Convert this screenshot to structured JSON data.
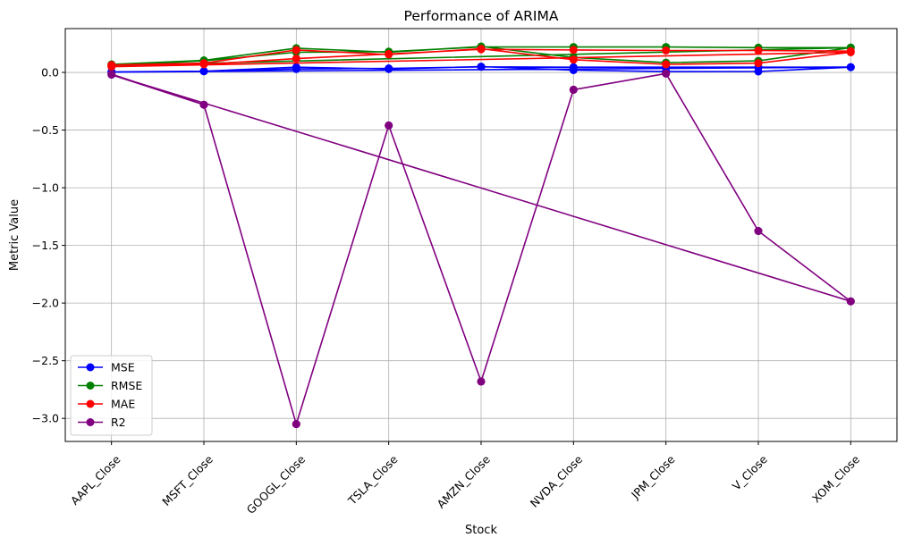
{
  "chart_data": {
    "type": "line",
    "title": "Performance of ARIMA",
    "xlabel": "Stock",
    "ylabel": "Metric Value",
    "categories": [
      "AAPL_Close",
      "MSFT_Close",
      "GOOGL_Close",
      "TSLA_Close",
      "AMZN_Close",
      "NVDA_Close",
      "JPM_Close",
      "V_Close",
      "XOM_Close"
    ],
    "ylim": [
      -3.2,
      0.38
    ],
    "yticks": [
      0.0,
      -0.5,
      -1.0,
      -1.5,
      -2.0,
      -2.5,
      -3.0
    ],
    "ytick_labels": [
      "0.0",
      "−0.5",
      "−1.0",
      "−1.5",
      "−2.0",
      "−2.5",
      "−3.0"
    ],
    "grid": true,
    "legend_position": "lower-left",
    "series": [
      {
        "name": "MSE",
        "color": "#0000ff",
        "points": [
          [
            0,
            0.005
          ],
          [
            1,
            0.01
          ],
          [
            2,
            0.045
          ],
          [
            3,
            0.03
          ],
          [
            4,
            0.05
          ],
          [
            5,
            0.02
          ],
          [
            6,
            0.007
          ],
          [
            7,
            0.008
          ],
          [
            8,
            0.045
          ],
          [
            0,
            0.003
          ],
          [
            1,
            0.01
          ],
          [
            2,
            0.03
          ],
          [
            3,
            0.035
          ],
          [
            4,
            0.048
          ],
          [
            5,
            0.045
          ],
          [
            6,
            0.045
          ],
          [
            7,
            0.045
          ],
          [
            8,
            0.046
          ]
        ]
      },
      {
        "name": "RMSE",
        "color": "#008000",
        "points": [
          [
            0,
            0.07
          ],
          [
            1,
            0.105
          ],
          [
            2,
            0.21
          ],
          [
            3,
            0.175
          ],
          [
            4,
            0.225
          ],
          [
            5,
            0.13
          ],
          [
            6,
            0.085
          ],
          [
            7,
            0.1
          ],
          [
            8,
            0.215
          ],
          [
            0,
            0.06
          ],
          [
            1,
            0.1
          ],
          [
            2,
            0.175
          ],
          [
            3,
            0.18
          ],
          [
            4,
            0.22
          ],
          [
            5,
            0.22
          ],
          [
            6,
            0.22
          ],
          [
            7,
            0.215
          ],
          [
            8,
            0.215
          ]
        ]
      },
      {
        "name": "MAE",
        "color": "#ff0000",
        "points": [
          [
            0,
            0.065
          ],
          [
            1,
            0.08
          ],
          [
            2,
            0.195
          ],
          [
            3,
            0.155
          ],
          [
            4,
            0.205
          ],
          [
            5,
            0.11
          ],
          [
            6,
            0.07
          ],
          [
            7,
            0.08
          ],
          [
            8,
            0.175
          ],
          [
            0,
            0.05
          ],
          [
            1,
            0.07
          ],
          [
            2,
            0.12
          ],
          [
            3,
            0.16
          ],
          [
            4,
            0.2
          ],
          [
            5,
            0.195
          ],
          [
            6,
            0.19
          ],
          [
            7,
            0.19
          ],
          [
            8,
            0.185
          ]
        ]
      },
      {
        "name": "R2",
        "color": "#800080",
        "points": [
          [
            0,
            -0.015
          ],
          [
            1,
            -0.28
          ],
          [
            2,
            -3.05
          ],
          [
            3,
            -0.46
          ],
          [
            4,
            -2.68
          ],
          [
            5,
            -0.15
          ],
          [
            6,
            -0.01
          ],
          [
            7,
            -1.375
          ],
          [
            8,
            -1.985
          ],
          [
            0,
            -0.02
          ],
          [
            1,
            -0.28
          ],
          [
            2,
            -3.05
          ],
          [
            3,
            -0.46
          ],
          [
            4,
            -2.68
          ],
          [
            5,
            -0.15
          ],
          [
            6,
            -0.01
          ],
          [
            7,
            -1.375
          ],
          [
            8,
            -1.985
          ]
        ]
      }
    ]
  }
}
